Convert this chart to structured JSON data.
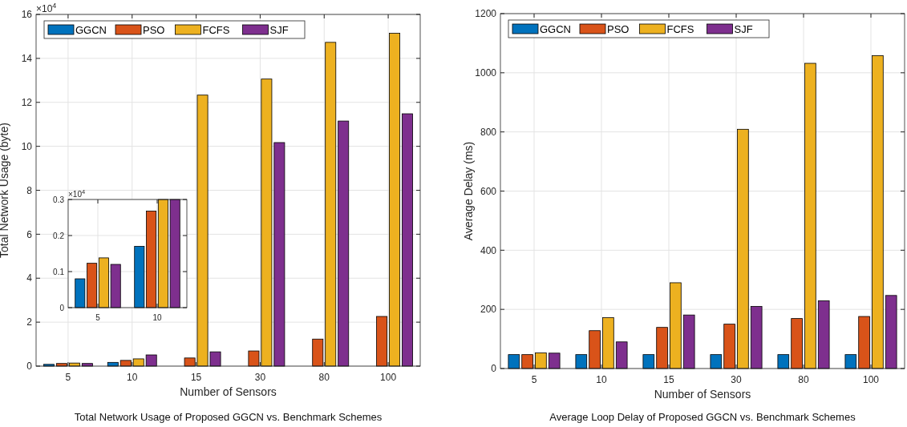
{
  "chart_data": [
    {
      "type": "bar",
      "title": "Total Network Usage of Proposed GGCN vs. Benchmark Schemes",
      "xlabel": "Number of Sensors",
      "ylabel": "Total Network Usage (byte)",
      "annotations": [
        "×10$^{4}$"
      ],
      "categories": [
        "5",
        "10",
        "15",
        "30",
        "80",
        "100"
      ],
      "series": [
        {
          "name": "GGCN",
          "color": "#0072bd",
          "values": [
            0.08,
            0.17,
            null,
            null,
            null,
            null
          ]
        },
        {
          "name": "PSO",
          "color": "#d95319",
          "values": [
            0.12,
            0.26,
            0.37,
            0.69,
            1.23,
            2.26
          ]
        },
        {
          "name": "FCFS",
          "color": "#edb120",
          "values": [
            0.14,
            0.33,
            12.33,
            13.06,
            14.73,
            15.14
          ]
        },
        {
          "name": "SJF",
          "color": "#7e2f8e",
          "values": [
            0.12,
            0.51,
            0.65,
            10.17,
            11.15,
            11.48
          ]
        }
      ],
      "ylim": [
        0,
        16
      ],
      "yticks": [
        0,
        2,
        4,
        6,
        8,
        10,
        12,
        14,
        16
      ],
      "grid": true,
      "legend": "top left"
    },
    {
      "type": "bar",
      "annotations": [
        "×10$^{4}$"
      ],
      "categories": [
        "5",
        "10"
      ],
      "series": [
        {
          "color": "#0072bd",
          "values": [
            0.08,
            0.17
          ]
        },
        {
          "color": "#d95319",
          "values": [
            0.123,
            0.268
          ]
        },
        {
          "color": "#edb120",
          "values": [
            0.138,
            0.3
          ]
        },
        {
          "color": "#7e2f8e",
          "values": [
            0.12,
            0.3
          ]
        }
      ],
      "ylim": [
        0,
        0.3
      ],
      "yticks": [
        0,
        0.1,
        0.2,
        0.3
      ],
      "grid": true
    },
    {
      "type": "bar",
      "title": "Average Loop Delay of Proposed GGCN vs. Benchmark Schemes",
      "xlabel": "Number of Sensors",
      "ylabel": "Average Delay (ms)",
      "categories": [
        "5",
        "10",
        "15",
        "30",
        "80",
        "100"
      ],
      "series": [
        {
          "name": "GGCN",
          "color": "#0072bd",
          "values": [
            47,
            47,
            47,
            47,
            47,
            47
          ]
        },
        {
          "name": "PSO",
          "color": "#d95319",
          "values": [
            47,
            128,
            139,
            150,
            169,
            176
          ]
        },
        {
          "name": "FCFS",
          "color": "#edb120",
          "values": [
            53,
            172,
            290,
            809,
            1032,
            1058
          ]
        },
        {
          "name": "SJF",
          "color": "#7e2f8e",
          "values": [
            52,
            90,
            181,
            210,
            229,
            247
          ]
        }
      ],
      "ylim": [
        0,
        1200
      ],
      "yticks": [
        0,
        200,
        400,
        600,
        800,
        1000,
        1200
      ],
      "grid": true,
      "legend": "top left"
    }
  ]
}
